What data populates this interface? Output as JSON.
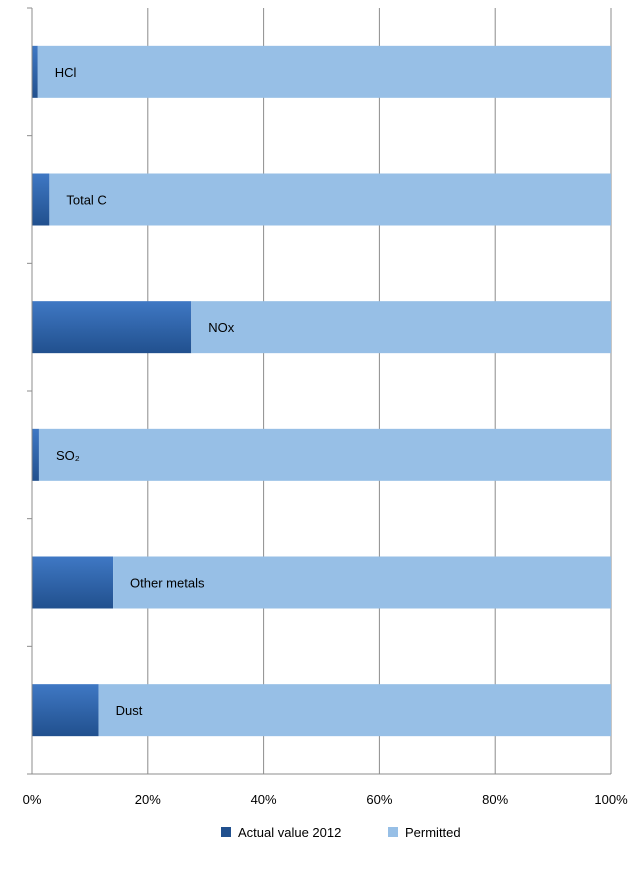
{
  "chart_data": {
    "type": "bar",
    "orientation": "horizontal",
    "stacked": "percent",
    "categories": [
      "HCl",
      "Total C",
      "NOx",
      "SO₂",
      "Other metals",
      "Dust"
    ],
    "series": [
      {
        "name": "Actual value 2012",
        "values": [
          1,
          3,
          27.5,
          1.2,
          14,
          11.5
        ]
      },
      {
        "name": "Permitted",
        "values": [
          99,
          97,
          72.5,
          98.8,
          86,
          88.5
        ]
      }
    ],
    "x_ticks": [
      "0%",
      "20%",
      "40%",
      "60%",
      "80%",
      "100%"
    ],
    "xlim": [
      0,
      100
    ],
    "grid": true,
    "legend": "bottom",
    "colors": {
      "actual_light": "#3f78c4",
      "actual_dark": "#21508e",
      "permitted": "#97bfe6",
      "grid": "#8c8c8c",
      "axis": "#8c8c8c"
    }
  }
}
